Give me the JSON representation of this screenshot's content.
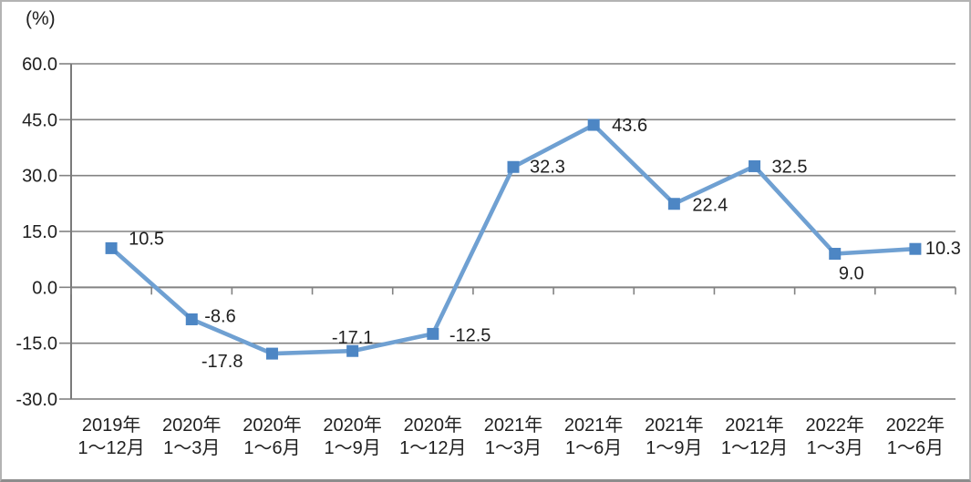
{
  "chart_data": {
    "type": "line",
    "title": "",
    "unit_label": "(%)",
    "series_count": 1,
    "legend": "none",
    "grid": true,
    "categories": [
      [
        "2019年",
        "1～12月"
      ],
      [
        "2020年",
        "1～3月"
      ],
      [
        "2020年",
        "1～6月"
      ],
      [
        "2020年",
        "1～9月"
      ],
      [
        "2020年",
        "1～12月"
      ],
      [
        "2021年",
        "1～3月"
      ],
      [
        "2021年",
        "1～6月"
      ],
      [
        "2021年",
        "1～9月"
      ],
      [
        "2021年",
        "1～12月"
      ],
      [
        "2022年",
        "1～3月"
      ],
      [
        "2022年",
        "1～6月"
      ]
    ],
    "values": [
      10.5,
      -8.6,
      -17.8,
      -17.1,
      -12.5,
      32.3,
      43.6,
      22.4,
      32.5,
      9.0,
      10.3
    ],
    "data_labels": [
      "10.5",
      "-8.6",
      "-17.8",
      "-17.1",
      "-12.5",
      "32.3",
      "43.6",
      "22.4",
      "32.5",
      "9.0",
      "10.3"
    ],
    "ylabel": "(%)",
    "ylim": [
      -30,
      60
    ],
    "y_step": 15,
    "y_tick_labels": [
      "60.0",
      "45.0",
      "30.0",
      "15.0",
      "0.0",
      "-15.0",
      "-30.0"
    ],
    "label_layout": [
      [
        19,
        -11,
        "start"
      ],
      [
        14,
        -4,
        "start"
      ],
      [
        -32,
        8,
        "end"
      ],
      [
        0,
        -15,
        "middle"
      ],
      [
        18,
        1,
        "start"
      ],
      [
        18,
        -1,
        "start"
      ],
      [
        20,
        0,
        "start"
      ],
      [
        20,
        1,
        "start"
      ],
      [
        19,
        0,
        "start"
      ],
      [
        18,
        21,
        "middle"
      ],
      [
        11,
        -1,
        "start"
      ]
    ],
    "colors": {
      "line": "#6fa0d2",
      "marker": "#4d86c4",
      "grid": "#828282",
      "axis": "#7a7a7a",
      "text": "#1f1f1f",
      "background": "#ffffff",
      "frame_border": "#b3b3b3"
    }
  }
}
